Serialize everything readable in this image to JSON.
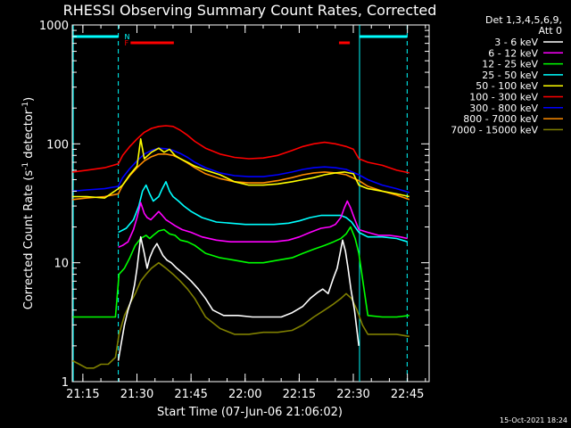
{
  "chart_data": {
    "type": "line",
    "title": "RHESSI Observing Summary Count Rates, Corrected",
    "xlabel": "Start Time (07-Jun-06 21:06:02)",
    "ylabel_main": "Corrected Count Rate (s",
    "ylabel_sup1": "-1",
    "ylabel_mid": " detector",
    "ylabel_sup2": "-1",
    "ylabel_end": ")",
    "yscale": "log",
    "ylim": [
      1,
      1000
    ],
    "xlim_min": [
      6.03,
      105
    ],
    "x_unit": "minutes after 21:06:02",
    "xticks": [
      {
        "x": 8.97,
        "label": "21:15"
      },
      {
        "x": 23.97,
        "label": "21:30"
      },
      {
        "x": 38.97,
        "label": "21:45"
      },
      {
        "x": 53.97,
        "label": "22:00"
      },
      {
        "x": 68.97,
        "label": "22:15"
      },
      {
        "x": 83.97,
        "label": "22:30"
      },
      {
        "x": 98.97,
        "label": "22:45"
      }
    ],
    "yticks": [
      {
        "v": 1,
        "label": "1"
      },
      {
        "v": 10,
        "label": "10"
      },
      {
        "v": 100,
        "label": "100"
      },
      {
        "v": 1000,
        "label": "1000"
      }
    ],
    "legend_header": [
      "Det 1,3,4,5,6,9,",
      "Att 0"
    ],
    "legend_position": "right",
    "night_day_markers": [
      {
        "x": 6.3,
        "color": "#00ffff",
        "style": "solid"
      },
      {
        "x": 18.8,
        "color": "#00ffff",
        "style": "dashed"
      },
      {
        "x": 85.7,
        "color": "#00ffff",
        "style": "solid"
      },
      {
        "x": 98.9,
        "color": "#00ffff",
        "style": "dashed"
      }
    ],
    "night_bars": [
      {
        "x": [
          6.3,
          18.8
        ],
        "color": "#00ffff"
      },
      {
        "x": [
          85.7,
          98.9
        ],
        "color": "#00ffff"
      }
    ],
    "flag_bars": [
      {
        "x": [
          22.2,
          34.2
        ],
        "color": "#ff0000"
      },
      {
        "x": [
          80.0,
          83.0
        ],
        "color": "#ff0000"
      }
    ],
    "flag_labels": [
      {
        "x": 20.0,
        "text": "N",
        "color": "#00ffff"
      },
      {
        "x": 20.0,
        "text": "F",
        "color": "#ff0000"
      }
    ],
    "series": [
      {
        "name": "3 - 6 keV",
        "color": "#ffffff",
        "x": [
          18.8,
          19.5,
          20.5,
          21.5,
          22.5,
          23.3,
          24.0,
          25.0,
          26.0,
          26.8,
          27.5,
          28.5,
          29.5,
          30.3,
          31.2,
          32.3,
          33.5,
          35.0,
          37.0,
          39.0,
          41.0,
          43.0,
          45.0,
          48.0,
          52.0,
          56.0,
          60.0,
          64.0,
          67.0,
          70.0,
          72.0,
          74.0,
          75.5,
          77.0,
          78.5,
          79.5,
          80.3,
          81.0,
          81.8,
          82.5,
          83.3,
          84.3,
          85.5
        ],
        "y": [
          1.5,
          2.0,
          3.0,
          4.0,
          5.0,
          6.5,
          9.0,
          16.5,
          12.0,
          9.0,
          11.0,
          13.0,
          14.5,
          13.0,
          11.5,
          10.5,
          10.0,
          9.0,
          8.0,
          7.0,
          6.0,
          5.0,
          4.0,
          3.6,
          3.6,
          3.5,
          3.5,
          3.5,
          3.8,
          4.3,
          5.0,
          5.6,
          6.0,
          5.5,
          7.5,
          9.0,
          12.0,
          15.5,
          12.5,
          9.0,
          6.0,
          4.0,
          2.0
        ]
      },
      {
        "name": "6 - 12 keV",
        "color": "#ff00ff",
        "x": [
          18.8,
          20.0,
          21.5,
          23.0,
          24.0,
          25.0,
          26.0,
          26.8,
          27.8,
          29.0,
          30.0,
          31.0,
          32.0,
          33.0,
          34.5,
          36.5,
          39.0,
          42.0,
          46.0,
          50.0,
          54.0,
          58.0,
          62.0,
          66.0,
          69.0,
          72.0,
          75.0,
          77.5,
          79.0,
          80.5,
          81.5,
          82.3,
          83.2,
          84.2,
          85.5,
          88.0,
          91.0,
          94.0,
          97.0,
          99.0
        ],
        "y": [
          13.5,
          14.0,
          15.0,
          19.0,
          24.0,
          32.0,
          26.0,
          24.0,
          23.0,
          25.0,
          27.0,
          25.0,
          23.0,
          22.0,
          20.5,
          19.0,
          18.0,
          16.5,
          15.5,
          15.0,
          15.0,
          15.0,
          15.0,
          15.5,
          16.5,
          18.0,
          19.5,
          20.0,
          21.0,
          24.0,
          29.0,
          33.0,
          29.0,
          24.0,
          19.0,
          18.0,
          17.0,
          17.0,
          16.5,
          16.0
        ]
      },
      {
        "name": "12 - 25 keV",
        "color": "#00ff00",
        "x": [
          6.1,
          10.0,
          14.0,
          18.0,
          19.0,
          20.5,
          22.0,
          23.5,
          25.0,
          26.5,
          27.5,
          28.5,
          30.0,
          31.5,
          33.0,
          34.5,
          36.0,
          38.0,
          40.0,
          43.0,
          47.0,
          51.0,
          55.0,
          59.0,
          63.0,
          67.0,
          70.0,
          73.0,
          76.0,
          78.5,
          80.5,
          82.0,
          83.2,
          84.5,
          85.5,
          88.0,
          92.0,
          96.0,
          99.5
        ],
        "y": [
          3.5,
          3.5,
          3.5,
          3.5,
          8.0,
          9.0,
          11.0,
          14.0,
          16.0,
          17.0,
          16.0,
          17.0,
          18.5,
          19.0,
          17.5,
          17.0,
          15.5,
          15.0,
          14.0,
          12.0,
          11.0,
          10.5,
          10.0,
          10.0,
          10.5,
          11.0,
          12.0,
          13.0,
          14.0,
          15.0,
          16.0,
          17.5,
          20.0,
          16.0,
          12.0,
          3.6,
          3.5,
          3.5,
          3.6
        ]
      },
      {
        "name": "25 - 50 keV",
        "color": "#00ffff",
        "x": [
          18.8,
          21.0,
          23.0,
          24.5,
          25.5,
          26.5,
          27.5,
          28.5,
          30.0,
          31.0,
          32.0,
          33.0,
          34.0,
          35.5,
          37.0,
          39.0,
          42.0,
          46.0,
          50.0,
          54.0,
          58.0,
          62.0,
          66.0,
          69.0,
          72.0,
          75.0,
          78.0,
          80.5,
          82.0,
          83.5,
          85.5,
          88.0,
          92.0,
          96.0,
          99.0
        ],
        "y": [
          18.0,
          19.5,
          23.0,
          30.0,
          40.0,
          45.0,
          38.0,
          33.0,
          36.0,
          42.0,
          48.0,
          40.0,
          36.0,
          33.0,
          30.0,
          27.0,
          24.0,
          22.0,
          21.5,
          21.0,
          21.0,
          21.0,
          21.5,
          22.5,
          24.0,
          25.0,
          25.0,
          25.0,
          24.0,
          22.0,
          18.0,
          16.5,
          16.5,
          16.0,
          15.0
        ]
      },
      {
        "name": "50 - 100 keV",
        "color": "#ffff00",
        "x": [
          6.1,
          10.0,
          15.0,
          18.8,
          20.0,
          22.0,
          24.0,
          25.0,
          26.0,
          27.0,
          28.0,
          30.0,
          31.5,
          33.0,
          34.5,
          36.0,
          38.0,
          40.0,
          43.0,
          47.0,
          51.0,
          55.0,
          59.0,
          63.0,
          67.0,
          70.0,
          73.0,
          76.0,
          79.0,
          81.5,
          84.0,
          85.5,
          88.0,
          92.0,
          96.0,
          99.5
        ],
        "y": [
          36.0,
          36.0,
          35.0,
          42.0,
          45.0,
          55.0,
          65.0,
          110.0,
          75.0,
          80.0,
          85.0,
          92.0,
          85.0,
          90.0,
          80.0,
          75.0,
          70.0,
          65.0,
          60.0,
          55.0,
          48.0,
          45.0,
          45.0,
          46.0,
          48.0,
          50.0,
          52.0,
          55.0,
          57.0,
          58.0,
          56.0,
          45.0,
          42.0,
          40.0,
          38.0,
          36.0
        ]
      },
      {
        "name": "100 - 300 keV",
        "color": "#ff0000",
        "x": [
          6.1,
          10.0,
          15.0,
          18.8,
          20.0,
          22.0,
          24.0,
          26.0,
          28.0,
          30.0,
          32.0,
          34.0,
          36.0,
          38.0,
          40.0,
          43.0,
          47.0,
          51.0,
          55.0,
          59.0,
          63.0,
          67.0,
          70.0,
          73.0,
          76.0,
          79.0,
          82.0,
          84.0,
          85.5,
          88.0,
          92.0,
          96.0,
          99.5
        ],
        "y": [
          58.0,
          60.0,
          63.0,
          68.0,
          80.0,
          95.0,
          110.0,
          125.0,
          135.0,
          140.0,
          142.0,
          140.0,
          130.0,
          118.0,
          105.0,
          92.0,
          82.0,
          77.0,
          75.0,
          76.0,
          80.0,
          88.0,
          95.0,
          100.0,
          103.0,
          100.0,
          95.0,
          90.0,
          75.0,
          70.0,
          66.0,
          60.0,
          57.0
        ]
      },
      {
        "name": "300 - 800 keV",
        "color": "#0000ff",
        "x": [
          6.1,
          10.0,
          15.0,
          18.8,
          20.0,
          22.0,
          24.0,
          26.0,
          28.0,
          30.0,
          32.0,
          34.0,
          36.0,
          38.0,
          40.0,
          43.0,
          47.0,
          51.0,
          55.0,
          59.0,
          63.0,
          67.0,
          70.0,
          73.0,
          76.0,
          79.0,
          82.0,
          85.5,
          88.0,
          92.0,
          96.0,
          99.5
        ],
        "y": [
          40.0,
          41.0,
          42.0,
          44.0,
          52.0,
          62.0,
          72.0,
          82.0,
          88.0,
          92.0,
          91.0,
          88.0,
          83.0,
          77.0,
          70.0,
          63.0,
          57.0,
          54.0,
          53.0,
          53.0,
          55.0,
          58.0,
          61.0,
          63.0,
          64.0,
          63.0,
          61.0,
          55.0,
          50.0,
          45.0,
          42.0,
          39.0
        ]
      },
      {
        "name": "800 - 7000 keV",
        "color": "#ff8c00",
        "x": [
          6.1,
          10.0,
          15.0,
          18.8,
          20.0,
          22.0,
          24.0,
          26.0,
          28.0,
          30.0,
          32.0,
          34.0,
          36.0,
          38.0,
          40.0,
          43.0,
          47.0,
          51.0,
          55.0,
          59.0,
          63.0,
          67.0,
          70.0,
          73.0,
          76.0,
          79.0,
          82.0,
          85.5,
          88.0,
          92.0,
          96.0,
          99.5
        ],
        "y": [
          34.0,
          35.0,
          36.0,
          38.0,
          45.0,
          54.0,
          63.0,
          72.0,
          78.0,
          82.0,
          82.0,
          80.0,
          75.0,
          69.0,
          63.0,
          56.0,
          51.0,
          48.0,
          47.0,
          47.0,
          49.0,
          52.0,
          55.0,
          57.0,
          58.0,
          57.0,
          55.0,
          49.0,
          44.0,
          40.0,
          37.0,
          34.0
        ]
      },
      {
        "name": "7000 - 15000 keV",
        "color": "#808000",
        "x": [
          6.1,
          8.0,
          10.0,
          12.0,
          14.0,
          16.0,
          18.0,
          19.0,
          20.5,
          22.0,
          23.5,
          25.0,
          26.5,
          28.0,
          30.0,
          32.0,
          34.0,
          36.0,
          38.0,
          40.0,
          43.0,
          47.0,
          51.0,
          55.0,
          59.0,
          63.0,
          67.0,
          70.0,
          73.0,
          76.0,
          78.5,
          80.5,
          82.0,
          83.5,
          85.0,
          86.5,
          88.0,
          92.0,
          96.0,
          99.5
        ],
        "y": [
          1.5,
          1.4,
          1.3,
          1.3,
          1.4,
          1.4,
          1.6,
          2.5,
          3.6,
          4.5,
          5.5,
          7.0,
          8.0,
          9.0,
          10.0,
          9.0,
          8.0,
          7.0,
          6.0,
          5.0,
          3.5,
          2.8,
          2.5,
          2.5,
          2.6,
          2.6,
          2.7,
          3.0,
          3.5,
          4.0,
          4.5,
          5.0,
          5.5,
          5.0,
          4.0,
          3.0,
          2.5,
          2.5,
          2.5,
          2.4
        ]
      }
    ]
  },
  "timestamp": "15-Oct-2021 18:24"
}
